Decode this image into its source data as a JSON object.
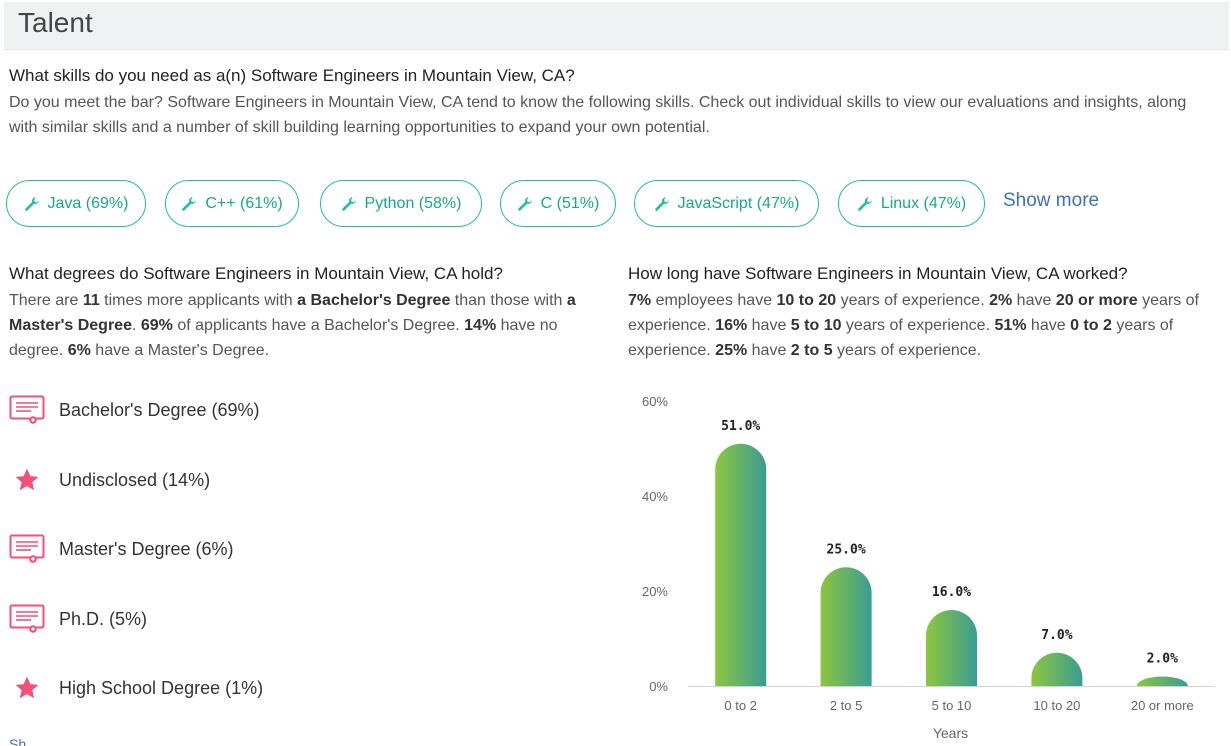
{
  "header": {
    "title": "Talent"
  },
  "skills": {
    "question": "What skills do you need as a(n) Software Engineers in Mountain View, CA?",
    "description": "Do you meet the bar? Software Engineers in Mountain View, CA tend to know the following skills. Check out individual skills to view our evaluations and insights, along with similar skills and a number of skill building learning opportunities to expand your own potential.",
    "pills": [
      {
        "label": "Java (69%)",
        "icon": "wrench-icon"
      },
      {
        "label": "C++ (61%)",
        "icon": "wrench-icon"
      },
      {
        "label": "Python (58%)",
        "icon": "wrench-icon"
      },
      {
        "label": "C (51%)",
        "icon": "wrench-icon"
      },
      {
        "label": "JavaScript (47%)",
        "icon": "wrench-icon"
      },
      {
        "label": "Linux (47%)",
        "icon": "wrench-icon"
      }
    ],
    "show_more": "Show more"
  },
  "degrees": {
    "question": "What degrees do Software Engineers in Mountain View, CA hold?",
    "description_parts": [
      {
        "t": "There are ",
        "b": false
      },
      {
        "t": "11",
        "b": true
      },
      {
        "t": " times more applicants with ",
        "b": false
      },
      {
        "t": "a Bachelor's Degree",
        "b": true
      },
      {
        "t": " than those with ",
        "b": false
      },
      {
        "t": "a Master's Degree",
        "b": true
      },
      {
        "t": ". ",
        "b": false
      },
      {
        "t": "69%",
        "b": true
      },
      {
        "t": " of applicants have a Bachelor's Degree. ",
        "b": false
      },
      {
        "t": "14%",
        "b": true
      },
      {
        "t": " have no degree. ",
        "b": false
      },
      {
        "t": "6%",
        "b": true
      },
      {
        "t": " have a Master's Degree.",
        "b": false
      }
    ],
    "items": [
      {
        "label": "Bachelor's Degree (69%)",
        "icon": "diploma-icon"
      },
      {
        "label": "Undisclosed (14%)",
        "icon": "star-icon"
      },
      {
        "label": "Master's Degree (6%)",
        "icon": "diploma-icon"
      },
      {
        "label": "Ph.D. (5%)",
        "icon": "diploma-icon"
      },
      {
        "label": "High School Degree (1%)",
        "icon": "star-icon"
      }
    ],
    "cut_off_text": "Sh"
  },
  "experience": {
    "question": "How long have Software Engineers in Mountain View, CA worked?",
    "description_parts": [
      {
        "t": "7%",
        "b": true
      },
      {
        "t": " employees have ",
        "b": false
      },
      {
        "t": "10 to 20",
        "b": true
      },
      {
        "t": " years of experience. ",
        "b": false
      },
      {
        "t": "2%",
        "b": true
      },
      {
        "t": " have ",
        "b": false
      },
      {
        "t": "20 or more",
        "b": true
      },
      {
        "t": " years of experience. ",
        "b": false
      },
      {
        "t": "16%",
        "b": true
      },
      {
        "t": " have ",
        "b": false
      },
      {
        "t": "5 to 10",
        "b": true
      },
      {
        "t": " years of experience. ",
        "b": false
      },
      {
        "t": "51%",
        "b": true
      },
      {
        "t": " have ",
        "b": false
      },
      {
        "t": "0 to 2",
        "b": true
      },
      {
        "t": " years of experience. ",
        "b": false
      },
      {
        "t": "25%",
        "b": true
      },
      {
        "t": " have ",
        "b": false
      },
      {
        "t": "2 to 5",
        "b": true
      },
      {
        "t": " years of experience.",
        "b": false
      }
    ]
  },
  "colors": {
    "accent": "#1fbfa0",
    "link": "#3a73b8",
    "icon_pink": "#f0507a",
    "bar_green": "#8dc63f",
    "bar_teal": "#3a9c94"
  },
  "chart_data": {
    "type": "bar",
    "categories": [
      "0 to 2",
      "2 to 5",
      "5 to 10",
      "10 to 20",
      "20 or more"
    ],
    "values": [
      51.0,
      25.0,
      16.0,
      7.0,
      2.0
    ],
    "value_labels": [
      "51.0%",
      "25.0%",
      "16.0%",
      "7.0%",
      "2.0%"
    ],
    "xlabel": "Years",
    "ylabel": "",
    "ylim": [
      0,
      60
    ],
    "yticks": [
      0,
      20,
      40,
      60
    ],
    "ytick_labels": [
      "0%",
      "20%",
      "40%",
      "60%"
    ],
    "grid": false,
    "title": ""
  }
}
